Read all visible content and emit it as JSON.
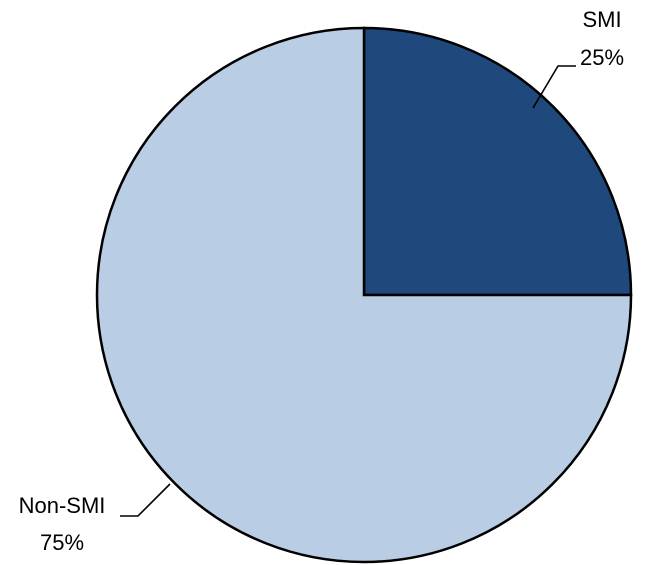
{
  "chart_data": {
    "type": "pie",
    "slices": [
      {
        "label": "SMI",
        "value": 25,
        "value_label": "25%",
        "color": "#1f497d"
      },
      {
        "label": "Non-SMI",
        "value": 75,
        "value_label": "75%",
        "color": "#b9cde5"
      }
    ],
    "legend": "none",
    "start_angle": "12 o'clock",
    "direction": "clockwise"
  }
}
